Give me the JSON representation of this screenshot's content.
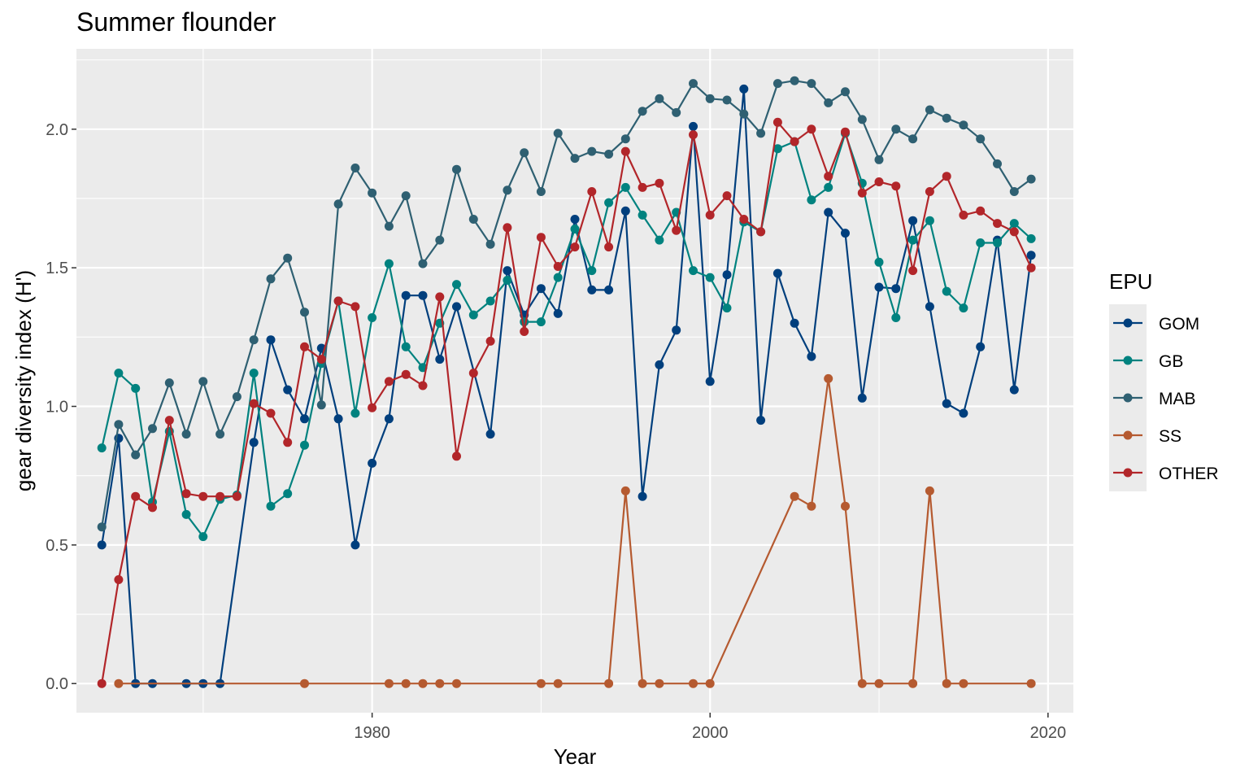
{
  "chart_data": {
    "type": "line",
    "title": "Summer flounder",
    "xlabel": "Year",
    "ylabel": "gear diversity index (H')",
    "xlim": [
      1962.5,
      2021.5
    ],
    "ylim": [
      -0.105,
      2.29
    ],
    "x_ticks": [
      1980,
      2000,
      2020
    ],
    "y_ticks": [
      0.0,
      0.5,
      1.0,
      1.5,
      2.0
    ],
    "x_tick_labels": [
      "1980",
      "2000",
      "2020"
    ],
    "y_tick_labels": [
      "0.0",
      "0.5",
      "1.0",
      "1.5",
      "2.0"
    ],
    "grid": true,
    "legend": {
      "title": "EPU",
      "position": "right"
    },
    "series": [
      {
        "name": "GOM",
        "color": "#003F7D",
        "points": [
          [
            1964,
            0.5
          ],
          [
            1965,
            0.885
          ],
          [
            1966,
            0.0
          ],
          [
            1967,
            0.0
          ],
          [
            1969,
            0.0
          ],
          [
            1970,
            0.0
          ],
          [
            1971,
            0.0
          ],
          [
            1973,
            0.87
          ],
          [
            1974,
            1.24
          ],
          [
            1975,
            1.06
          ],
          [
            1976,
            0.955
          ],
          [
            1977,
            1.21
          ],
          [
            1978,
            0.955
          ],
          [
            1979,
            0.5
          ],
          [
            1980,
            0.795
          ],
          [
            1981,
            0.955
          ],
          [
            1982,
            1.4
          ],
          [
            1983,
            1.4
          ],
          [
            1984,
            1.17
          ],
          [
            1985,
            1.36
          ],
          [
            1987,
            0.9
          ],
          [
            1988,
            1.49
          ],
          [
            1989,
            1.33
          ],
          [
            1990,
            1.425
          ],
          [
            1991,
            1.335
          ],
          [
            1992,
            1.675
          ],
          [
            1993,
            1.42
          ],
          [
            1994,
            1.42
          ],
          [
            1995,
            1.705
          ],
          [
            1996,
            0.675
          ],
          [
            1997,
            1.15
          ],
          [
            1998,
            1.275
          ],
          [
            1999,
            2.01
          ],
          [
            2000,
            1.09
          ],
          [
            2001,
            1.475
          ],
          [
            2002,
            2.145
          ],
          [
            2003,
            0.95
          ],
          [
            2004,
            1.48
          ],
          [
            2005,
            1.3
          ],
          [
            2006,
            1.18
          ],
          [
            2007,
            1.7
          ],
          [
            2008,
            1.625
          ],
          [
            2009,
            1.03
          ],
          [
            2010,
            1.43
          ],
          [
            2011,
            1.425
          ],
          [
            2012,
            1.67
          ],
          [
            2013,
            1.36
          ],
          [
            2014,
            1.01
          ],
          [
            2015,
            0.975
          ],
          [
            2016,
            1.215
          ],
          [
            2017,
            1.6
          ],
          [
            2018,
            1.06
          ],
          [
            2019,
            1.545
          ]
        ]
      },
      {
        "name": "GB",
        "color": "#00827F",
        "points": [
          [
            1964,
            0.85
          ],
          [
            1965,
            1.12
          ],
          [
            1966,
            1.065
          ],
          [
            1967,
            0.655
          ],
          [
            1968,
            0.91
          ],
          [
            1969,
            0.61
          ],
          [
            1970,
            0.53
          ],
          [
            1971,
            0.665
          ],
          [
            1972,
            0.68
          ],
          [
            1973,
            1.12
          ],
          [
            1974,
            0.64
          ],
          [
            1975,
            0.685
          ],
          [
            1976,
            0.86
          ],
          [
            1977,
            1.155
          ],
          [
            1978,
            1.38
          ],
          [
            1979,
            0.975
          ],
          [
            1980,
            1.32
          ],
          [
            1981,
            1.515
          ],
          [
            1982,
            1.215
          ],
          [
            1983,
            1.14
          ],
          [
            1984,
            1.3
          ],
          [
            1985,
            1.44
          ],
          [
            1986,
            1.33
          ],
          [
            1987,
            1.38
          ],
          [
            1988,
            1.455
          ],
          [
            1989,
            1.305
          ],
          [
            1990,
            1.305
          ],
          [
            1991,
            1.465
          ],
          [
            1992,
            1.64
          ],
          [
            1993,
            1.49
          ],
          [
            1994,
            1.735
          ],
          [
            1995,
            1.79
          ],
          [
            1996,
            1.69
          ],
          [
            1997,
            1.6
          ],
          [
            1998,
            1.7
          ],
          [
            1999,
            1.49
          ],
          [
            2000,
            1.465
          ],
          [
            2001,
            1.355
          ],
          [
            2002,
            1.665
          ],
          [
            2003,
            1.63
          ],
          [
            2004,
            1.93
          ],
          [
            2005,
            1.955
          ],
          [
            2006,
            1.745
          ],
          [
            2007,
            1.79
          ],
          [
            2008,
            1.985
          ],
          [
            2009,
            1.805
          ],
          [
            2010,
            1.52
          ],
          [
            2011,
            1.32
          ],
          [
            2012,
            1.6
          ],
          [
            2013,
            1.67
          ],
          [
            2014,
            1.415
          ],
          [
            2015,
            1.355
          ],
          [
            2016,
            1.59
          ],
          [
            2017,
            1.59
          ],
          [
            2018,
            1.66
          ],
          [
            2019,
            1.605
          ]
        ]
      },
      {
        "name": "MAB",
        "color": "#2F6072",
        "points": [
          [
            1964,
            0.565
          ],
          [
            1965,
            0.935
          ],
          [
            1966,
            0.825
          ],
          [
            1967,
            0.92
          ],
          [
            1968,
            1.085
          ],
          [
            1969,
            0.9
          ],
          [
            1970,
            1.09
          ],
          [
            1971,
            0.9
          ],
          [
            1972,
            1.035
          ],
          [
            1973,
            1.24
          ],
          [
            1974,
            1.46
          ],
          [
            1975,
            1.535
          ],
          [
            1976,
            1.34
          ],
          [
            1977,
            1.005
          ],
          [
            1978,
            1.73
          ],
          [
            1979,
            1.86
          ],
          [
            1980,
            1.77
          ],
          [
            1981,
            1.65
          ],
          [
            1982,
            1.76
          ],
          [
            1983,
            1.515
          ],
          [
            1984,
            1.6
          ],
          [
            1985,
            1.855
          ],
          [
            1986,
            1.675
          ],
          [
            1987,
            1.585
          ],
          [
            1988,
            1.78
          ],
          [
            1989,
            1.915
          ],
          [
            1990,
            1.775
          ],
          [
            1991,
            1.985
          ],
          [
            1992,
            1.895
          ],
          [
            1993,
            1.92
          ],
          [
            1994,
            1.91
          ],
          [
            1995,
            1.965
          ],
          [
            1996,
            2.065
          ],
          [
            1997,
            2.11
          ],
          [
            1998,
            2.06
          ],
          [
            1999,
            2.165
          ],
          [
            2000,
            2.11
          ],
          [
            2001,
            2.105
          ],
          [
            2002,
            2.055
          ],
          [
            2003,
            1.985
          ],
          [
            2004,
            2.165
          ],
          [
            2005,
            2.175
          ],
          [
            2006,
            2.165
          ],
          [
            2007,
            2.095
          ],
          [
            2008,
            2.135
          ],
          [
            2009,
            2.035
          ],
          [
            2010,
            1.89
          ],
          [
            2011,
            2.0
          ],
          [
            2012,
            1.965
          ],
          [
            2013,
            2.07
          ],
          [
            2014,
            2.04
          ],
          [
            2015,
            2.015
          ],
          [
            2016,
            1.965
          ],
          [
            2017,
            1.875
          ],
          [
            2018,
            1.775
          ],
          [
            2019,
            1.82
          ]
        ]
      },
      {
        "name": "SS",
        "color": "#B55A30",
        "points": [
          [
            1965,
            0.0
          ],
          [
            1976,
            0.0
          ],
          [
            1981,
            0.0
          ],
          [
            1982,
            0.0
          ],
          [
            1983,
            0.0
          ],
          [
            1984,
            0.0
          ],
          [
            1985,
            0.0
          ],
          [
            1990,
            0.0
          ],
          [
            1991,
            0.0
          ],
          [
            1994,
            0.0
          ],
          [
            1995,
            0.695
          ],
          [
            1996,
            0.0
          ],
          [
            1997,
            0.0
          ],
          [
            1999,
            0.0
          ],
          [
            2000,
            0.0
          ],
          [
            2005,
            0.675
          ],
          [
            2006,
            0.64
          ],
          [
            2007,
            1.1
          ],
          [
            2008,
            0.64
          ],
          [
            2009,
            0.0
          ],
          [
            2010,
            0.0
          ],
          [
            2012,
            0.0
          ],
          [
            2013,
            0.695
          ],
          [
            2014,
            0.0
          ],
          [
            2015,
            0.0
          ],
          [
            2019,
            0.0
          ]
        ]
      },
      {
        "name": "OTHER",
        "color": "#B2262A",
        "points": [
          [
            1964,
            0.0
          ],
          [
            1965,
            0.375
          ],
          [
            1966,
            0.675
          ],
          [
            1967,
            0.635
          ],
          [
            1968,
            0.95
          ],
          [
            1969,
            0.685
          ],
          [
            1970,
            0.675
          ],
          [
            1971,
            0.675
          ],
          [
            1972,
            0.675
          ],
          [
            1973,
            1.01
          ],
          [
            1974,
            0.975
          ],
          [
            1975,
            0.87
          ],
          [
            1976,
            1.215
          ],
          [
            1977,
            1.17
          ],
          [
            1978,
            1.38
          ],
          [
            1979,
            1.36
          ],
          [
            1980,
            0.995
          ],
          [
            1981,
            1.09
          ],
          [
            1982,
            1.115
          ],
          [
            1983,
            1.075
          ],
          [
            1984,
            1.395
          ],
          [
            1985,
            0.82
          ],
          [
            1986,
            1.12
          ],
          [
            1987,
            1.235
          ],
          [
            1988,
            1.645
          ],
          [
            1989,
            1.27
          ],
          [
            1990,
            1.61
          ],
          [
            1991,
            1.505
          ],
          [
            1992,
            1.575
          ],
          [
            1993,
            1.775
          ],
          [
            1994,
            1.575
          ],
          [
            1995,
            1.92
          ],
          [
            1996,
            1.79
          ],
          [
            1997,
            1.805
          ],
          [
            1998,
            1.635
          ],
          [
            1999,
            1.98
          ],
          [
            2000,
            1.69
          ],
          [
            2001,
            1.76
          ],
          [
            2002,
            1.675
          ],
          [
            2003,
            1.63
          ],
          [
            2004,
            2.025
          ],
          [
            2005,
            1.955
          ],
          [
            2006,
            2.0
          ],
          [
            2007,
            1.83
          ],
          [
            2008,
            1.99
          ],
          [
            2009,
            1.77
          ],
          [
            2010,
            1.81
          ],
          [
            2011,
            1.795
          ],
          [
            2012,
            1.49
          ],
          [
            2013,
            1.775
          ],
          [
            2014,
            1.83
          ],
          [
            2015,
            1.69
          ],
          [
            2016,
            1.705
          ],
          [
            2017,
            1.66
          ],
          [
            2018,
            1.63
          ],
          [
            2019,
            1.5
          ]
        ]
      }
    ]
  }
}
